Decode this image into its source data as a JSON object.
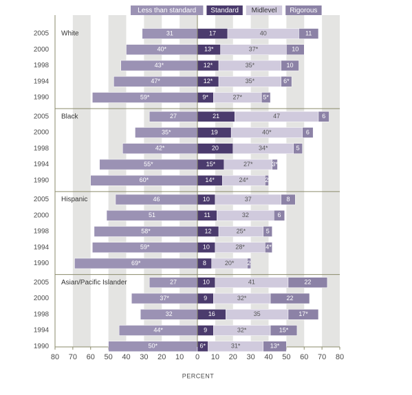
{
  "chart_data": {
    "type": "diverging-bar",
    "xlabel": "PERCENT",
    "row_groups": [
      "White",
      "Black",
      "Hispanic",
      "Asian/Pacific Islander"
    ],
    "categories": [
      "2005",
      "2000",
      "1998",
      "1994",
      "1990",
      "2005",
      "2000",
      "1998",
      "1994",
      "1990",
      "2005",
      "2000",
      "1998",
      "1994",
      "1990",
      "2005",
      "2000",
      "1998",
      "1994",
      "1990"
    ],
    "series": [
      {
        "name": "Less than standard",
        "color": "#9b92b4",
        "side": "left",
        "values": [
          31,
          40,
          43,
          47,
          59,
          27,
          35,
          42,
          55,
          60,
          46,
          51,
          58,
          59,
          69,
          27,
          37,
          32,
          44,
          50
        ],
        "value_labels": [
          "31",
          "40*",
          "43*",
          "47*",
          "59*",
          "27",
          "35*",
          "42*",
          "55*",
          "60*",
          "46",
          "51",
          "58*",
          "59*",
          "69*",
          "27",
          "37*",
          "32",
          "44*",
          "50*"
        ]
      },
      {
        "name": "Standard",
        "color": "#4b3b6d",
        "side": "right",
        "values": [
          17,
          13,
          12,
          12,
          9,
          21,
          19,
          20,
          15,
          14,
          10,
          11,
          12,
          10,
          8,
          10,
          9,
          16,
          9,
          6
        ],
        "value_labels": [
          "17",
          "13*",
          "12*",
          "12*",
          "9*",
          "21",
          "19",
          "20",
          "15*",
          "14*",
          "10",
          "11",
          "12",
          "10",
          "8",
          "10",
          "9",
          "16",
          "9",
          "6*"
        ]
      },
      {
        "name": "Midlevel",
        "color": "#d0cadd",
        "side": "right",
        "values": [
          40,
          37,
          35,
          35,
          27,
          47,
          40,
          34,
          27,
          24,
          37,
          32,
          25,
          28,
          20,
          41,
          32,
          35,
          32,
          31
        ],
        "value_labels": [
          "40",
          "37*",
          "35*",
          "35*",
          "27*",
          "47",
          "40*",
          "34*",
          "27*",
          "24*",
          "37",
          "32",
          "25*",
          "28*",
          "20*",
          "41",
          "32*",
          "35",
          "32*",
          "31*"
        ]
      },
      {
        "name": "Rigorous",
        "color": "#8c82a6",
        "side": "right",
        "values": [
          11,
          10,
          10,
          6,
          5,
          6,
          6,
          5,
          3,
          2,
          8,
          6,
          5,
          4,
          2,
          22,
          22,
          17,
          15,
          13
        ],
        "value_labels": [
          "11",
          "10",
          "10",
          "6*",
          "5*",
          "6",
          "6",
          "5",
          "3*",
          "2",
          "8",
          "6",
          "5",
          "4*",
          "2",
          "22",
          "22",
          "17*",
          "15*",
          "13*"
        ]
      }
    ],
    "xlim": [
      -80,
      80
    ],
    "xticks": [
      {
        "value": -80,
        "label": "80"
      },
      {
        "value": -70,
        "label": "70"
      },
      {
        "value": -60,
        "label": "60"
      },
      {
        "value": -50,
        "label": "50"
      },
      {
        "value": -40,
        "label": "40"
      },
      {
        "value": -30,
        "label": "30"
      },
      {
        "value": -20,
        "label": "20"
      },
      {
        "value": -10,
        "label": "10"
      },
      0,
      10,
      20,
      30,
      40,
      50,
      60,
      70,
      80
    ],
    "grid": true
  }
}
